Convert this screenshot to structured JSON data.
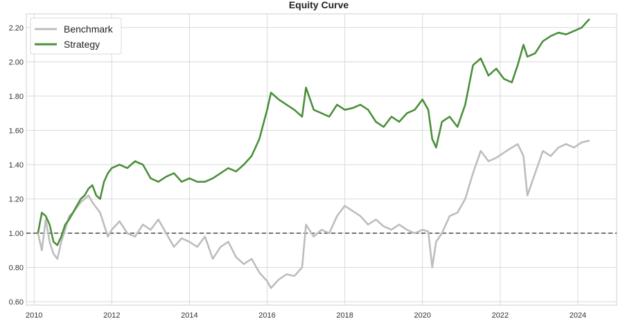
{
  "chart_data": {
    "type": "line",
    "title": "Equity Curve",
    "xlabel": "",
    "ylabel": "",
    "x_ticks": [
      "2010",
      "2012",
      "2014",
      "2016",
      "2018",
      "2020",
      "2022",
      "2024"
    ],
    "y_ticks": [
      "0.60",
      "0.80",
      "1.00",
      "1.20",
      "1.40",
      "1.60",
      "1.80",
      "2.00",
      "2.20"
    ],
    "xlim": [
      2009.8,
      2025.0
    ],
    "ylim": [
      0.58,
      2.28
    ],
    "grid": true,
    "legend_position": "top-left",
    "reference_line": {
      "y": 1.0,
      "style": "dashed",
      "color": "#444444"
    },
    "series": [
      {
        "name": "Benchmark",
        "color": "#bdbdbd",
        "x": [
          2010.1,
          2010.2,
          2010.3,
          2010.4,
          2010.5,
          2010.6,
          2010.7,
          2010.8,
          2010.9,
          2011.0,
          2011.1,
          2011.2,
          2011.3,
          2011.4,
          2011.5,
          2011.6,
          2011.7,
          2011.8,
          2011.9,
          2012.0,
          2012.2,
          2012.4,
          2012.6,
          2012.8,
          2013.0,
          2013.2,
          2013.4,
          2013.6,
          2013.8,
          2014.0,
          2014.2,
          2014.4,
          2014.6,
          2014.8,
          2015.0,
          2015.2,
          2015.4,
          2015.6,
          2015.8,
          2016.0,
          2016.1,
          2016.3,
          2016.5,
          2016.7,
          2016.9,
          2017.0,
          2017.2,
          2017.4,
          2017.6,
          2017.8,
          2018.0,
          2018.2,
          2018.4,
          2018.6,
          2018.8,
          2019.0,
          2019.2,
          2019.4,
          2019.6,
          2019.8,
          2020.0,
          2020.15,
          2020.25,
          2020.35,
          2020.5,
          2020.7,
          2020.9,
          2021.1,
          2021.3,
          2021.5,
          2021.7,
          2021.9,
          2022.1,
          2022.3,
          2022.45,
          2022.6,
          2022.7,
          2022.9,
          2023.1,
          2023.3,
          2023.5,
          2023.7,
          2023.9,
          2024.1,
          2024.3
        ],
        "values": [
          1.0,
          0.9,
          1.08,
          0.95,
          0.88,
          0.85,
          0.95,
          1.02,
          1.1,
          1.12,
          1.15,
          1.18,
          1.2,
          1.22,
          1.18,
          1.15,
          1.12,
          1.05,
          0.98,
          1.02,
          1.07,
          1.0,
          0.98,
          1.05,
          1.02,
          1.08,
          1.0,
          0.92,
          0.97,
          0.95,
          0.92,
          0.98,
          0.85,
          0.92,
          0.95,
          0.86,
          0.82,
          0.85,
          0.77,
          0.72,
          0.68,
          0.73,
          0.76,
          0.75,
          0.8,
          1.05,
          0.98,
          1.02,
          1.0,
          1.1,
          1.16,
          1.13,
          1.1,
          1.05,
          1.08,
          1.04,
          1.02,
          1.05,
          1.02,
          1.0,
          1.02,
          1.01,
          0.8,
          0.95,
          1.0,
          1.1,
          1.12,
          1.2,
          1.35,
          1.48,
          1.42,
          1.44,
          1.47,
          1.5,
          1.52,
          1.45,
          1.22,
          1.35,
          1.48,
          1.45,
          1.5,
          1.52,
          1.5,
          1.53,
          1.54
        ]
      },
      {
        "name": "Strategy",
        "color": "#4a8f3a",
        "x": [
          2010.1,
          2010.2,
          2010.3,
          2010.4,
          2010.5,
          2010.6,
          2010.7,
          2010.8,
          2010.9,
          2011.0,
          2011.1,
          2011.2,
          2011.3,
          2011.4,
          2011.5,
          2011.6,
          2011.7,
          2011.8,
          2011.9,
          2012.0,
          2012.2,
          2012.4,
          2012.6,
          2012.8,
          2013.0,
          2013.2,
          2013.4,
          2013.6,
          2013.8,
          2014.0,
          2014.2,
          2014.4,
          2014.6,
          2014.8,
          2015.0,
          2015.2,
          2015.4,
          2015.6,
          2015.8,
          2016.0,
          2016.1,
          2016.3,
          2016.5,
          2016.7,
          2016.9,
          2017.0,
          2017.2,
          2017.4,
          2017.6,
          2017.8,
          2018.0,
          2018.2,
          2018.4,
          2018.6,
          2018.8,
          2019.0,
          2019.2,
          2019.4,
          2019.6,
          2019.8,
          2020.0,
          2020.15,
          2020.25,
          2020.35,
          2020.5,
          2020.7,
          2020.9,
          2021.1,
          2021.3,
          2021.5,
          2021.7,
          2021.9,
          2022.1,
          2022.3,
          2022.45,
          2022.6,
          2022.7,
          2022.9,
          2023.1,
          2023.3,
          2023.5,
          2023.7,
          2023.9,
          2024.1,
          2024.3
        ],
        "values": [
          1.0,
          1.12,
          1.1,
          1.05,
          0.95,
          0.93,
          0.98,
          1.05,
          1.08,
          1.12,
          1.16,
          1.2,
          1.22,
          1.26,
          1.28,
          1.22,
          1.2,
          1.3,
          1.35,
          1.38,
          1.4,
          1.38,
          1.42,
          1.4,
          1.32,
          1.3,
          1.33,
          1.35,
          1.3,
          1.32,
          1.3,
          1.3,
          1.32,
          1.35,
          1.38,
          1.36,
          1.4,
          1.45,
          1.55,
          1.72,
          1.82,
          1.78,
          1.75,
          1.72,
          1.68,
          1.85,
          1.72,
          1.7,
          1.68,
          1.75,
          1.72,
          1.73,
          1.75,
          1.72,
          1.65,
          1.62,
          1.68,
          1.65,
          1.7,
          1.72,
          1.78,
          1.72,
          1.55,
          1.5,
          1.65,
          1.68,
          1.62,
          1.75,
          1.98,
          2.02,
          1.92,
          1.96,
          1.9,
          1.88,
          1.98,
          2.1,
          2.03,
          2.05,
          2.12,
          2.15,
          2.17,
          2.16,
          2.18,
          2.2,
          2.25
        ]
      }
    ]
  }
}
